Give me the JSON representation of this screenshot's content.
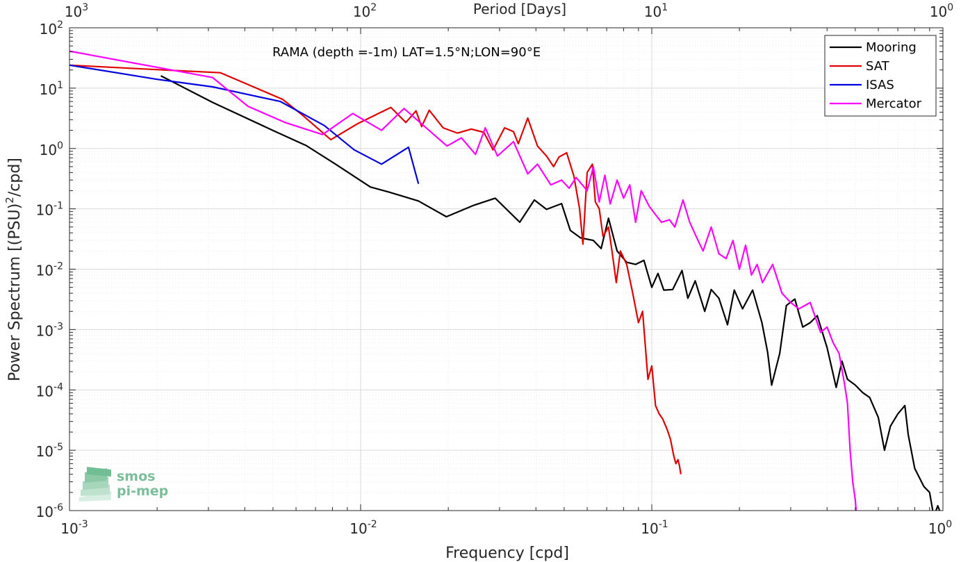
{
  "chart_data": {
    "type": "line",
    "title": "RAMA (depth =-1m) LAT=1.5°N;LON=90°E",
    "xlabel": "Frequency [cpd]",
    "ylabel": "Power Spectrum [(PSU)",
    "ylabel_sup": "2",
    "ylabel_tail": "/cpd]",
    "x2label": "Period [Days]",
    "xscale": "log",
    "yscale": "log",
    "xlim": [
      0.001,
      1
    ],
    "ylim": [
      1e-06,
      100
    ],
    "grid": true,
    "legend_position": "top-right",
    "x_ticks": [
      {
        "base": "10",
        "exp": "-3"
      },
      {
        "base": "10",
        "exp": "-2"
      },
      {
        "base": "10",
        "exp": "-1"
      },
      {
        "base": "10",
        "exp": "0"
      }
    ],
    "x2_ticks": [
      {
        "base": "10",
        "exp": "3"
      },
      {
        "base": "10",
        "exp": "2"
      },
      {
        "base": "10",
        "exp": "1"
      },
      {
        "base": "10",
        "exp": "0"
      }
    ],
    "y_ticks": [
      {
        "base": "10",
        "exp": "-6"
      },
      {
        "base": "10",
        "exp": "-5"
      },
      {
        "base": "10",
        "exp": "-4"
      },
      {
        "base": "10",
        "exp": "-3"
      },
      {
        "base": "10",
        "exp": "-2"
      },
      {
        "base": "10",
        "exp": "-1"
      },
      {
        "base": "10",
        "exp": "0"
      },
      {
        "base": "10",
        "exp": "1"
      },
      {
        "base": "10",
        "exp": "2"
      }
    ],
    "series": [
      {
        "name": "Mooring",
        "color": "#000000",
        "points": [
          [
            0.00206,
            16
          ],
          [
            0.0031,
            5.8
          ],
          [
            0.0051,
            1.9
          ],
          [
            0.0065,
            1.12
          ],
          [
            0.0082,
            0.55
          ],
          [
            0.0108,
            0.23
          ],
          [
            0.0125,
            0.19
          ],
          [
            0.0158,
            0.135
          ],
          [
            0.0197,
            0.074
          ],
          [
            0.0245,
            0.115
          ],
          [
            0.029,
            0.15
          ],
          [
            0.0352,
            0.06
          ],
          [
            0.0395,
            0.14
          ],
          [
            0.0435,
            0.098
          ],
          [
            0.049,
            0.122
          ],
          [
            0.0525,
            0.044
          ],
          [
            0.057,
            0.033
          ],
          [
            0.063,
            0.03
          ],
          [
            0.067,
            0.022
          ],
          [
            0.071,
            0.07
          ],
          [
            0.076,
            0.02
          ],
          [
            0.082,
            0.013
          ],
          [
            0.088,
            0.012
          ],
          [
            0.094,
            0.014
          ],
          [
            0.1,
            0.005
          ],
          [
            0.105,
            0.0085
          ],
          [
            0.11,
            0.0045
          ],
          [
            0.118,
            0.0046
          ],
          [
            0.127,
            0.0095
          ],
          [
            0.133,
            0.0033
          ],
          [
            0.141,
            0.0064
          ],
          [
            0.152,
            0.002
          ],
          [
            0.16,
            0.0046
          ],
          [
            0.17,
            0.0033
          ],
          [
            0.182,
            0.0012
          ],
          [
            0.192,
            0.0045
          ],
          [
            0.205,
            0.0022
          ],
          [
            0.222,
            0.0045
          ],
          [
            0.239,
            0.0013
          ],
          [
            0.25,
            0.00042
          ],
          [
            0.258,
            0.00012
          ],
          [
            0.275,
            0.0004
          ],
          [
            0.29,
            0.0025
          ],
          [
            0.31,
            0.0032
          ],
          [
            0.33,
            0.0011
          ],
          [
            0.35,
            0.0013
          ],
          [
            0.37,
            0.0017
          ],
          [
            0.4,
            0.0005
          ],
          [
            0.43,
            0.00011
          ],
          [
            0.45,
            0.0003
          ],
          [
            0.47,
            0.00015
          ],
          [
            0.5,
            0.00012
          ],
          [
            0.53,
            9e-05
          ],
          [
            0.56,
            7.5e-05
          ],
          [
            0.6,
            3.5e-05
          ],
          [
            0.63,
            1e-05
          ],
          [
            0.66,
            2.5e-05
          ],
          [
            0.7,
            4e-05
          ],
          [
            0.74,
            5.5e-05
          ],
          [
            0.76,
            1.8e-05
          ],
          [
            0.8,
            5e-06
          ],
          [
            0.86,
            2.5e-06
          ],
          [
            0.9,
            2e-06
          ],
          [
            0.93,
            8e-07
          ],
          [
            0.96,
            1.2e-06
          ],
          [
            0.99,
            8e-07
          ]
        ]
      },
      {
        "name": "SAT",
        "color": "#e00000",
        "points": [
          [
            0.001,
            24
          ],
          [
            0.0021,
            20
          ],
          [
            0.0033,
            18
          ],
          [
            0.0054,
            6.5
          ],
          [
            0.0063,
            3.6
          ],
          [
            0.0079,
            1.4
          ],
          [
            0.0098,
            2.6
          ],
          [
            0.0127,
            4.8
          ],
          [
            0.0143,
            2.7
          ],
          [
            0.0155,
            4.2
          ],
          [
            0.0162,
            2.3
          ],
          [
            0.0172,
            4.3
          ],
          [
            0.0192,
            2.2
          ],
          [
            0.0215,
            1.8
          ],
          [
            0.024,
            2.1
          ],
          [
            0.0265,
            1.85
          ],
          [
            0.0285,
            0.95
          ],
          [
            0.0312,
            2.2
          ],
          [
            0.0335,
            1.9
          ],
          [
            0.0348,
            1.2
          ],
          [
            0.0375,
            3.2
          ],
          [
            0.0405,
            1.1
          ],
          [
            0.0435,
            0.75
          ],
          [
            0.046,
            0.5
          ],
          [
            0.048,
            0.72
          ],
          [
            0.051,
            0.85
          ],
          [
            0.054,
            0.35
          ],
          [
            0.0565,
            0.1
          ],
          [
            0.058,
            0.026
          ],
          [
            0.06,
            0.4
          ],
          [
            0.0625,
            0.55
          ],
          [
            0.064,
            0.13
          ],
          [
            0.066,
            0.1
          ],
          [
            0.068,
            0.035
          ],
          [
            0.071,
            0.05
          ],
          [
            0.073,
            0.02
          ],
          [
            0.0755,
            0.006
          ],
          [
            0.078,
            0.02
          ],
          [
            0.082,
            0.012
          ],
          [
            0.086,
            0.004
          ],
          [
            0.09,
            0.0013
          ],
          [
            0.093,
            0.002
          ],
          [
            0.097,
            0.00015
          ],
          [
            0.1,
            0.00025
          ],
          [
            0.103,
            5.5e-05
          ],
          [
            0.106,
            4e-05
          ],
          [
            0.109,
            3.3e-05
          ],
          [
            0.113,
            2.2e-05
          ],
          [
            0.116,
            1.5e-05
          ],
          [
            0.119,
            8e-06
          ],
          [
            0.121,
            6e-06
          ],
          [
            0.123,
            7e-06
          ],
          [
            0.1245,
            5.5e-06
          ],
          [
            0.1258,
            4e-06
          ]
        ]
      },
      {
        "name": "ISAS",
        "color": "#0000e0",
        "points": [
          [
            0.001,
            24
          ],
          [
            0.002,
            14
          ],
          [
            0.0031,
            10.5
          ],
          [
            0.0053,
            6
          ],
          [
            0.0075,
            2.4
          ],
          [
            0.0095,
            0.95
          ],
          [
            0.0118,
            0.55
          ],
          [
            0.0146,
            1.05
          ],
          [
            0.0158,
            0.26
          ]
        ]
      },
      {
        "name": "Mercator",
        "color": "#ff00ff",
        "points": [
          [
            0.001,
            41
          ],
          [
            0.0031,
            15
          ],
          [
            0.0041,
            5
          ],
          [
            0.0055,
            2.7
          ],
          [
            0.0074,
            1.7
          ],
          [
            0.0094,
            3.8
          ],
          [
            0.0118,
            2
          ],
          [
            0.0141,
            4.6
          ],
          [
            0.0176,
            1.8
          ],
          [
            0.0198,
            1.1
          ],
          [
            0.0222,
            1.5
          ],
          [
            0.0248,
            0.8
          ],
          [
            0.0268,
            2.2
          ],
          [
            0.0295,
            0.75
          ],
          [
            0.0335,
            1.3
          ],
          [
            0.0375,
            0.38
          ],
          [
            0.0405,
            0.55
          ],
          [
            0.045,
            0.25
          ],
          [
            0.049,
            0.3
          ],
          [
            0.052,
            0.22
          ],
          [
            0.055,
            0.33
          ],
          [
            0.06,
            0.2
          ],
          [
            0.063,
            0.5
          ],
          [
            0.066,
            0.13
          ],
          [
            0.069,
            0.36
          ],
          [
            0.072,
            0.12
          ],
          [
            0.076,
            0.3
          ],
          [
            0.08,
            0.15
          ],
          [
            0.084,
            0.25
          ],
          [
            0.088,
            0.06
          ],
          [
            0.092,
            0.2
          ],
          [
            0.098,
            0.11
          ],
          [
            0.103,
            0.08
          ],
          [
            0.108,
            0.06
          ],
          [
            0.115,
            0.066
          ],
          [
            0.12,
            0.05
          ],
          [
            0.128,
            0.14
          ],
          [
            0.135,
            0.06
          ],
          [
            0.142,
            0.035
          ],
          [
            0.15,
            0.02
          ],
          [
            0.16,
            0.05
          ],
          [
            0.17,
            0.018
          ],
          [
            0.18,
            0.015
          ],
          [
            0.19,
            0.03
          ],
          [
            0.2,
            0.01
          ],
          [
            0.21,
            0.025
          ],
          [
            0.22,
            0.008
          ],
          [
            0.23,
            0.012
          ],
          [
            0.24,
            0.006
          ],
          [
            0.26,
            0.012
          ],
          [
            0.28,
            0.004
          ],
          [
            0.3,
            0.0028
          ],
          [
            0.32,
            0.0022
          ],
          [
            0.35,
            0.0028
          ],
          [
            0.38,
            0.0009
          ],
          [
            0.4,
            0.0011
          ],
          [
            0.42,
            0.0006
          ],
          [
            0.44,
            0.0004
          ],
          [
            0.46,
            0.00012
          ],
          [
            0.47,
            6e-05
          ],
          [
            0.48,
            1e-05
          ],
          [
            0.49,
            3e-06
          ],
          [
            0.5,
            1.5e-06
          ],
          [
            0.505,
            8e-07
          ]
        ]
      }
    ]
  },
  "logo": {
    "line1": "smos",
    "line2": "pi-mep"
  }
}
